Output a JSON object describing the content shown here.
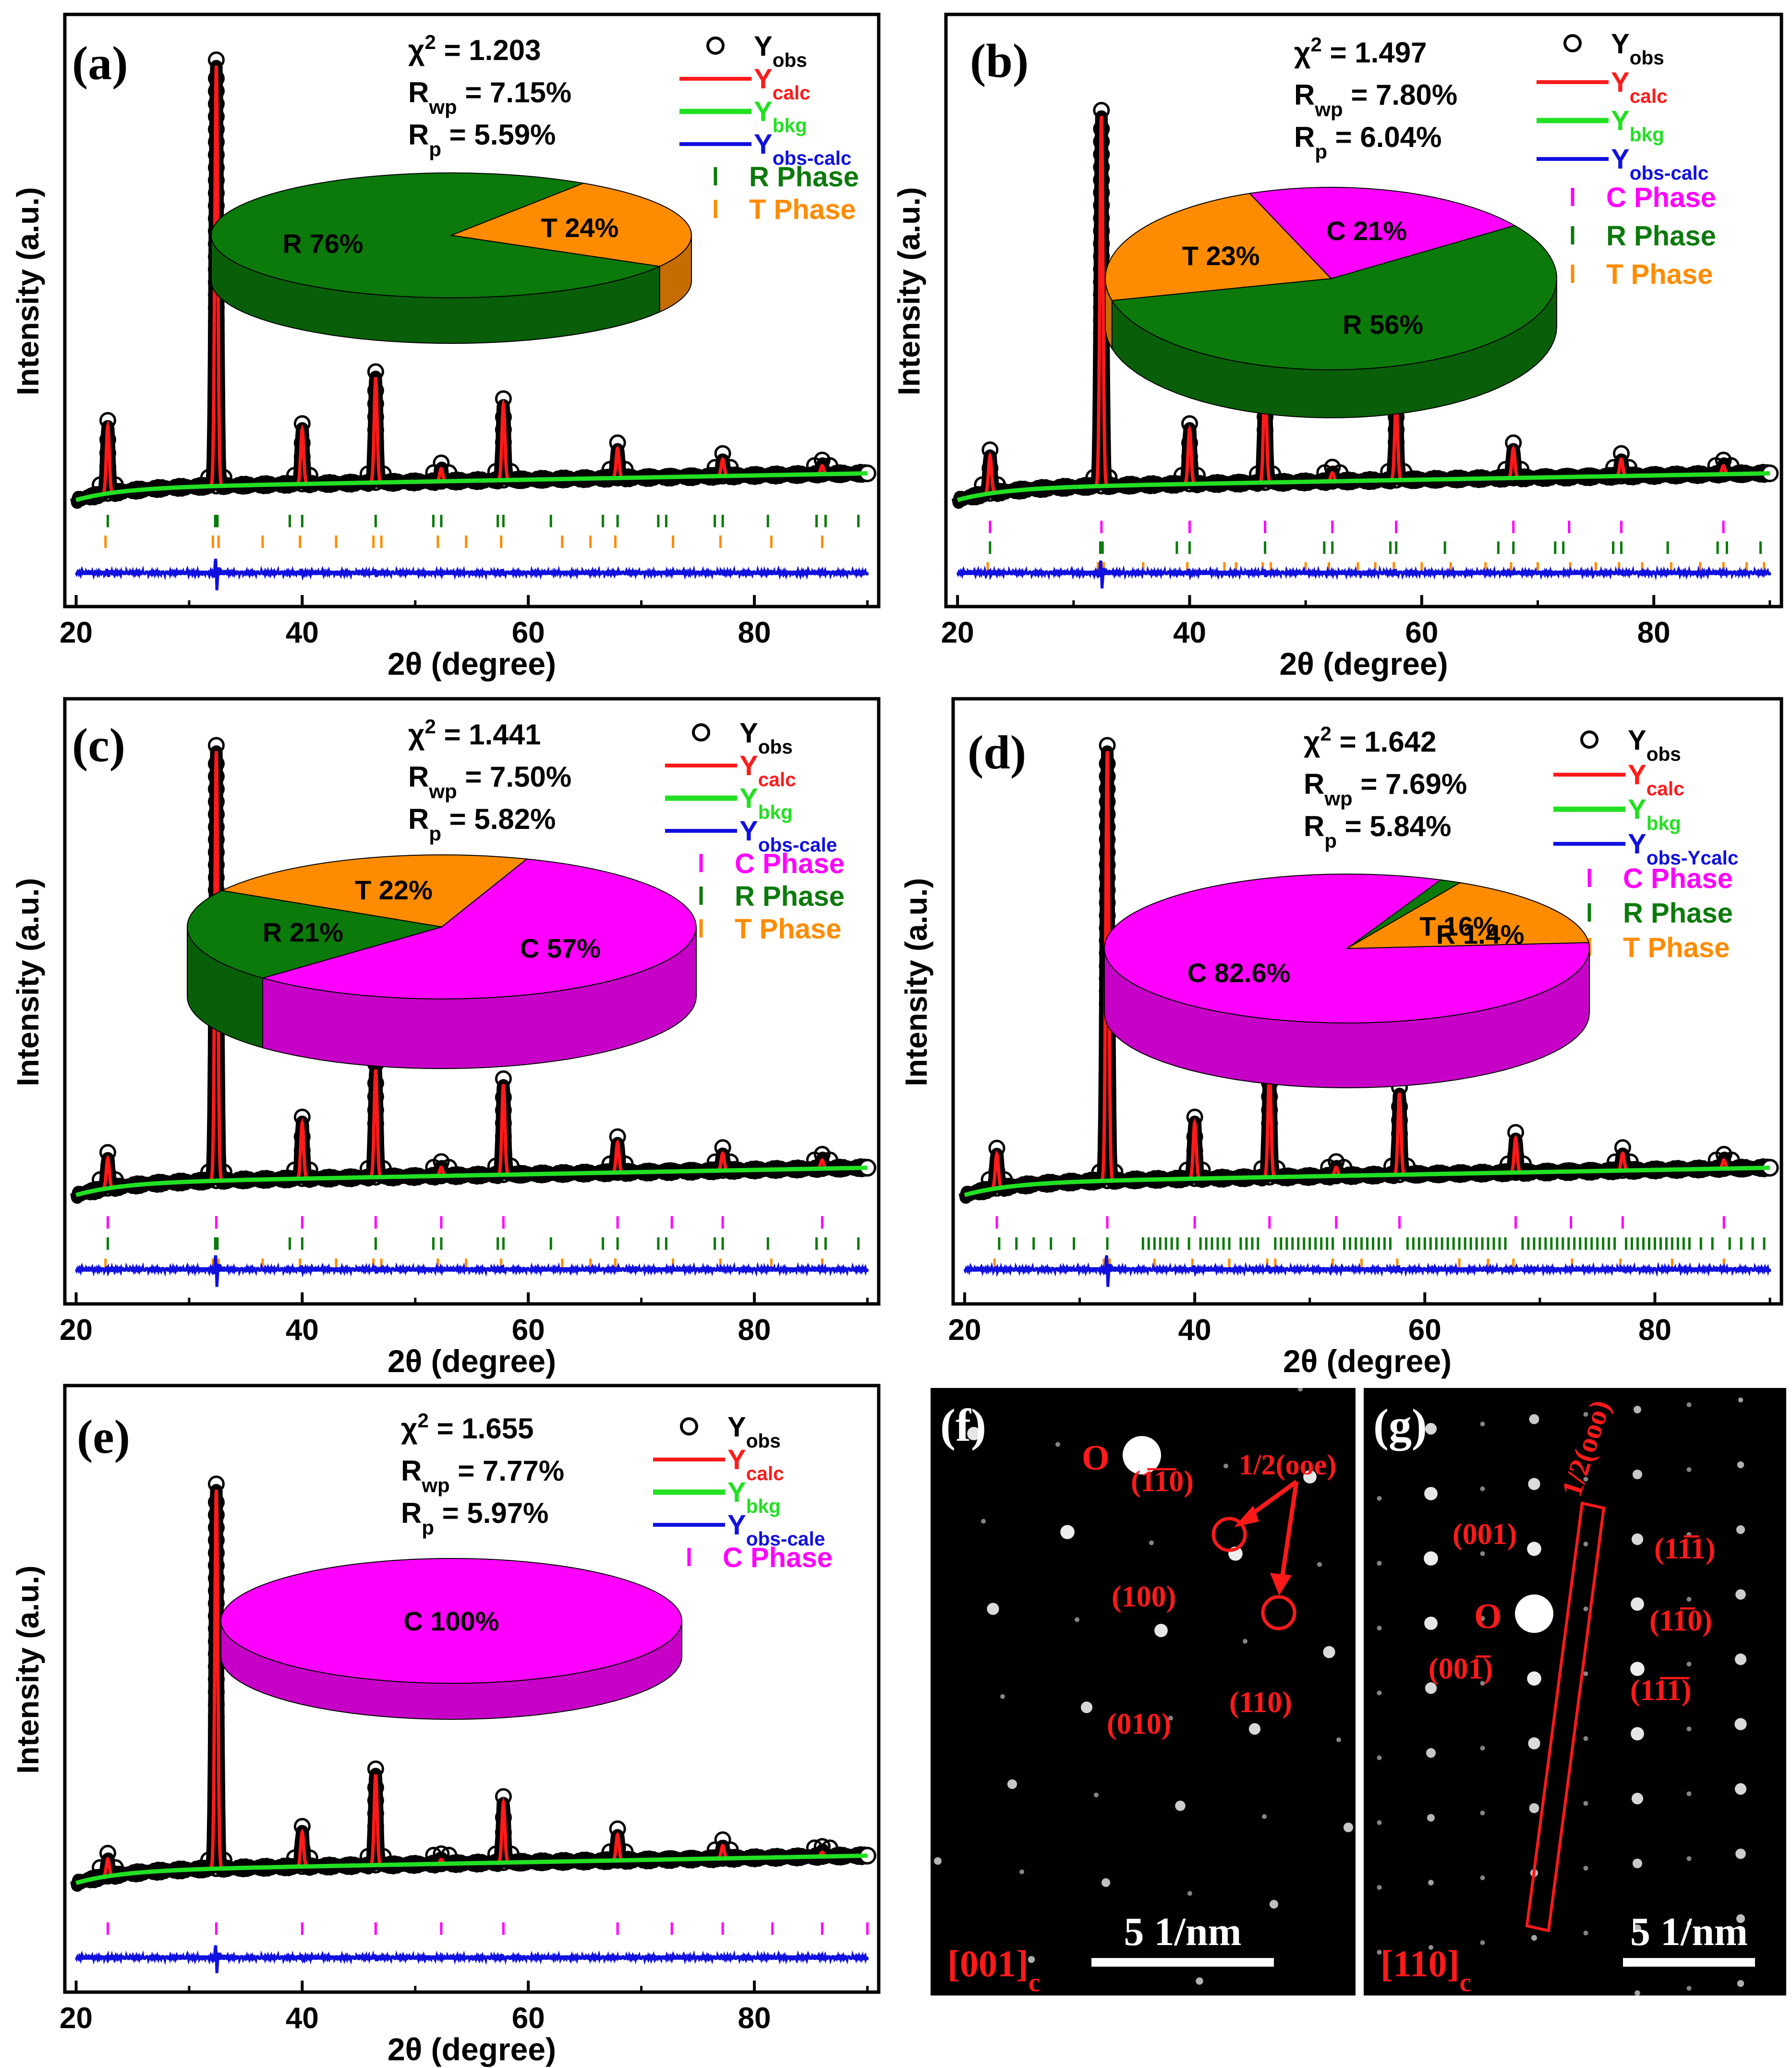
{
  "chart_data": [
    {
      "type": "line",
      "panel": "(a)",
      "xlabel": "2θ (degree)",
      "ylabel": "Intensity (a.u.)",
      "xlim": [
        20,
        90
      ],
      "xticks": [
        20,
        40,
        60,
        80
      ],
      "stats": {
        "chi2": "χ² = 1.203",
        "rwp": "Rwp = 7.15%",
        "rp": "Rp = 5.59%"
      },
      "legend": [
        {
          "label": "Y",
          "sub": "obs",
          "kind": "circle",
          "color": "#000000"
        },
        {
          "label": "Y",
          "sub": "calc",
          "kind": "line",
          "color": "#ff1a1a"
        },
        {
          "label": "Y",
          "sub": "bkg",
          "kind": "line",
          "color": "#22e022"
        },
        {
          "label": "Y",
          "sub": "obs-calc",
          "kind": "line",
          "color": "#1010e0"
        },
        {
          "label": "R Phase",
          "sub": "",
          "kind": "tick",
          "color": "#0b7a0b"
        },
        {
          "label": "T Phase",
          "sub": "",
          "kind": "tick",
          "color": "#ff8c00"
        }
      ],
      "peaks": [
        [
          22.8,
          0.16
        ],
        [
          32.4,
          1.0
        ],
        [
          40.0,
          0.13
        ],
        [
          46.5,
          0.25
        ],
        [
          52.3,
          0.03
        ],
        [
          57.8,
          0.18
        ],
        [
          67.9,
          0.07
        ],
        [
          77.2,
          0.04
        ],
        [
          86.0,
          0.02
        ]
      ],
      "phase_ticks": [
        {
          "phase": "R",
          "color": "#0b7a0b",
          "positions": [
            22.8,
            32.3,
            32.5,
            38.9,
            40.0,
            46.5,
            51.6,
            52.3,
            57.3,
            57.8,
            62.0,
            66.6,
            67.9,
            71.5,
            72.2,
            76.5,
            77.2,
            81.2,
            85.5,
            86.3,
            89.2
          ]
        },
        {
          "phase": "T",
          "color": "#ff8c00",
          "positions": [
            22.6,
            32.1,
            32.6,
            36.5,
            39.8,
            43.0,
            46.3,
            47.0,
            52.0,
            54.5,
            57.6,
            63.0,
            65.5,
            67.7,
            72.8,
            77.0,
            81.5,
            86.0
          ]
        }
      ],
      "pie": [
        {
          "label": "R 76%",
          "phase": "R",
          "value": 76,
          "color": "#0b7a0b"
        },
        {
          "label": "T 24%",
          "phase": "T",
          "value": 24,
          "color": "#ff8c00"
        }
      ]
    },
    {
      "type": "line",
      "panel": "(b)",
      "xlabel": "2θ (degree)",
      "ylabel": "Intensity (a.u.)",
      "xlim": [
        20,
        90
      ],
      "xticks": [
        20,
        40,
        60,
        80
      ],
      "stats": {
        "chi2": "χ² = 1.497",
        "rwp": "Rwp = 7.80%",
        "rp": "Rp = 6.04%"
      },
      "legend": [
        {
          "label": "Y",
          "sub": "obs",
          "kind": "circle",
          "color": "#000000"
        },
        {
          "label": "Y",
          "sub": "calc",
          "kind": "line",
          "color": "#ff1a1a"
        },
        {
          "label": "Y",
          "sub": "bkg",
          "kind": "line",
          "color": "#22e022"
        },
        {
          "label": "Y",
          "sub": "obs-calc",
          "kind": "line",
          "color": "#1010e0"
        },
        {
          "label": "C Phase",
          "sub": "",
          "kind": "tick",
          "color": "#ff00ff"
        },
        {
          "label": "R Phase",
          "sub": "",
          "kind": "tick",
          "color": "#0b7a0b"
        },
        {
          "label": "T Phase",
          "sub": "",
          "kind": "tick",
          "color": "#ff8c00"
        }
      ],
      "peaks": [
        [
          22.8,
          0.09
        ],
        [
          32.4,
          0.88
        ],
        [
          40.0,
          0.13
        ],
        [
          46.5,
          0.25
        ],
        [
          52.3,
          0.02
        ],
        [
          57.8,
          0.18
        ],
        [
          67.9,
          0.07
        ],
        [
          77.2,
          0.04
        ],
        [
          86.0,
          0.02
        ]
      ],
      "phase_ticks": [
        {
          "phase": "C",
          "color": "#ff00ff",
          "positions": [
            22.8,
            32.4,
            40.0,
            46.5,
            52.3,
            57.8,
            67.9,
            72.7,
            77.2,
            86.0
          ]
        },
        {
          "phase": "R",
          "color": "#0b7a0b",
          "positions": [
            22.8,
            32.3,
            32.5,
            38.9,
            40.0,
            46.5,
            51.6,
            52.3,
            57.3,
            57.8,
            62.0,
            66.6,
            67.9,
            71.5,
            72.2,
            76.5,
            77.2,
            81.2,
            85.5,
            86.3,
            89.2
          ]
        },
        {
          "phase": "T",
          "color": "#ff8c00",
          "positions": [
            22.6,
            32.1,
            32.6,
            36.0,
            39.8,
            43.0,
            44.0,
            46.3,
            47.0,
            50.0,
            52.0,
            54.5,
            56.0,
            57.6,
            60.0,
            62.5,
            65.5,
            67.7,
            70.0,
            72.8,
            75.0,
            77.0,
            79.0,
            81.5,
            84.0,
            86.0,
            88.0,
            89.5
          ]
        }
      ],
      "pie": [
        {
          "label": "R 56%",
          "phase": "R",
          "value": 56,
          "color": "#0b7a0b"
        },
        {
          "label": "T 23%",
          "phase": "T",
          "value": 23,
          "color": "#ff8c00"
        },
        {
          "label": "C 21%",
          "phase": "C",
          "value": 21,
          "color": "#ff00ff"
        }
      ]
    },
    {
      "type": "line",
      "panel": "(c)",
      "xlabel": "2θ (degree)",
      "ylabel": "Intensity (a.u.)",
      "xlim": [
        20,
        90
      ],
      "xticks": [
        20,
        40,
        60,
        80
      ],
      "stats": {
        "chi2": "χ² = 1.441",
        "rwp": "Rwp = 7.50%",
        "rp": "Rp = 5.82%"
      },
      "legend": [
        {
          "label": "Y",
          "sub": "obs",
          "kind": "circle",
          "color": "#000000"
        },
        {
          "label": "Y",
          "sub": "calc",
          "kind": "line",
          "color": "#ff1a1a"
        },
        {
          "label": "Y",
          "sub": "bkg",
          "kind": "line",
          "color": "#22e022"
        },
        {
          "label": "Y",
          "sub": "obs-cale",
          "kind": "line",
          "color": "#1010e0"
        },
        {
          "label": "C Phase",
          "sub": "",
          "kind": "tick",
          "color": "#ff00ff"
        },
        {
          "label": "R Phase",
          "sub": "",
          "kind": "tick",
          "color": "#0b7a0b"
        },
        {
          "label": "T Phase",
          "sub": "",
          "kind": "tick",
          "color": "#ff8c00"
        }
      ],
      "peaks": [
        [
          22.8,
          0.07
        ],
        [
          32.4,
          1.0
        ],
        [
          40.0,
          0.13
        ],
        [
          46.5,
          0.25
        ],
        [
          52.3,
          0.02
        ],
        [
          57.8,
          0.21
        ],
        [
          67.9,
          0.07
        ],
        [
          77.2,
          0.04
        ],
        [
          86.0,
          0.02
        ]
      ],
      "phase_ticks": [
        {
          "phase": "C",
          "color": "#ff00ff",
          "positions": [
            22.8,
            32.4,
            40.0,
            46.5,
            52.3,
            57.8,
            67.9,
            72.7,
            77.2,
            86.0
          ]
        },
        {
          "phase": "R",
          "color": "#0b7a0b",
          "positions": [
            22.8,
            32.3,
            32.5,
            38.9,
            40.0,
            46.5,
            51.6,
            52.3,
            57.3,
            57.8,
            62.0,
            66.6,
            67.9,
            71.5,
            72.2,
            76.5,
            77.2,
            81.2,
            85.5,
            86.3,
            89.2
          ]
        },
        {
          "phase": "T",
          "color": "#ff8c00",
          "positions": [
            22.6,
            32.1,
            32.6,
            36.5,
            39.8,
            43.0,
            46.3,
            47.0,
            52.0,
            54.5,
            57.6,
            63.0,
            65.5,
            67.7,
            72.8,
            77.0,
            81.5,
            86.0
          ]
        }
      ],
      "pie": [
        {
          "label": "C 57%",
          "phase": "C",
          "value": 57,
          "color": "#ff00ff"
        },
        {
          "label": "R 21%",
          "phase": "R",
          "value": 21,
          "color": "#0b7a0b"
        },
        {
          "label": "T 22%",
          "phase": "T",
          "value": 22,
          "color": "#ff8c00"
        }
      ]
    },
    {
      "type": "line",
      "panel": "(d)",
      "xlabel": "2θ (degree)",
      "ylabel": "Intensity (a.u.)",
      "xlim": [
        20,
        90
      ],
      "xticks": [
        20,
        40,
        60,
        80
      ],
      "stats": {
        "chi2": "χ² = 1.642",
        "rwp": "Rwp = 7.69%",
        "rp": "Rp = 5.84%"
      },
      "legend": [
        {
          "label": "Y",
          "sub": "obs",
          "kind": "circle",
          "color": "#000000"
        },
        {
          "label": "Y",
          "sub": "calc",
          "kind": "line",
          "color": "#ff1a1a"
        },
        {
          "label": "Y",
          "sub": "bkg",
          "kind": "line",
          "color": "#22e022"
        },
        {
          "label": "Y",
          "sub": "obs-Ycalc",
          "kind": "line",
          "color": "#1010e0"
        },
        {
          "label": "C Phase",
          "sub": "",
          "kind": "tick",
          "color": "#ff00ff"
        },
        {
          "label": "R Phase",
          "sub": "",
          "kind": "tick",
          "color": "#0b7a0b"
        },
        {
          "label": "T Phase",
          "sub": "",
          "kind": "tick",
          "color": "#ff8c00"
        }
      ],
      "peaks": [
        [
          22.8,
          0.08
        ],
        [
          32.4,
          1.0
        ],
        [
          40.0,
          0.13
        ],
        [
          46.5,
          0.25
        ],
        [
          52.3,
          0.02
        ],
        [
          57.8,
          0.19
        ],
        [
          67.9,
          0.08
        ],
        [
          77.2,
          0.04
        ],
        [
          86.0,
          0.02
        ]
      ],
      "phase_ticks": [
        {
          "phase": "C",
          "color": "#ff00ff",
          "positions": [
            22.8,
            32.4,
            40.0,
            46.5,
            52.3,
            57.8,
            67.9,
            72.7,
            77.2,
            86.0
          ]
        },
        {
          "phase": "R",
          "color": "#0b7a0b",
          "positions": [
            23.0,
            24.5,
            26.0,
            27.5,
            29.5,
            32.4,
            35.5,
            36.0,
            36.5,
            37.0,
            37.5,
            38.0,
            38.5,
            39.5,
            40.5,
            41.0,
            41.5,
            42.0,
            42.5,
            43.0,
            44.0,
            44.5,
            45.0,
            45.5,
            47.0,
            47.5,
            48.0,
            48.5,
            49.0,
            49.5,
            50.0,
            50.5,
            51.0,
            51.5,
            52.0,
            53.0,
            53.5,
            54.0,
            54.5,
            55.0,
            55.5,
            56.0,
            56.5,
            57.0,
            58.5,
            59.0,
            59.5,
            60.0,
            60.5,
            61.0,
            61.5,
            62.0,
            62.5,
            63.0,
            63.5,
            64.0,
            64.5,
            65.0,
            65.5,
            66.0,
            66.5,
            67.0,
            68.5,
            69.0,
            69.5,
            70.0,
            70.5,
            71.0,
            71.5,
            72.0,
            72.5,
            73.0,
            73.5,
            74.0,
            74.5,
            75.0,
            75.5,
            76.0,
            76.5,
            77.5,
            78.0,
            78.5,
            79.0,
            79.5,
            80.0,
            80.5,
            81.0,
            81.5,
            82.0,
            82.5,
            83.0,
            84.0,
            85.0,
            86.5,
            87.5,
            88.5,
            89.5
          ]
        },
        {
          "phase": "T",
          "color": "#ff8c00",
          "positions": [
            22.6,
            32.1,
            32.6,
            36.5,
            39.8,
            43.0,
            46.3,
            47.0,
            52.0,
            54.5,
            57.6,
            63.0,
            65.5,
            67.7,
            72.8,
            77.0,
            81.5,
            86.0
          ]
        }
      ],
      "pie": [
        {
          "label": "C 82.6%",
          "phase": "C",
          "value": 82.6,
          "color": "#ff00ff"
        },
        {
          "label": "R 1.4%",
          "phase": "R",
          "value": 1.4,
          "color": "#0b7a0b"
        },
        {
          "label": "T 16%",
          "phase": "T",
          "value": 16,
          "color": "#ff8c00"
        }
      ]
    },
    {
      "type": "line",
      "panel": "(e)",
      "xlabel": "2θ (degree)",
      "ylabel": "Intensity (a.u.)",
      "xlim": [
        20,
        90
      ],
      "xticks": [
        20,
        40,
        60,
        80
      ],
      "stats": {
        "chi2": "χ² = 1.655",
        "rwp": "Rwp = 7.77%",
        "rp": "Rp = 5.97%"
      },
      "legend": [
        {
          "label": "Y",
          "sub": "obs",
          "kind": "circle",
          "color": "#000000"
        },
        {
          "label": "Y",
          "sub": "calc",
          "kind": "line",
          "color": "#ff1a1a"
        },
        {
          "label": "Y",
          "sub": "bkg",
          "kind": "line",
          "color": "#22e022"
        },
        {
          "label": "Y",
          "sub": "obs-cale",
          "kind": "line",
          "color": "#1010e0"
        },
        {
          "label": "C Phase",
          "sub": "",
          "kind": "tick",
          "color": "#ff00ff"
        }
      ],
      "peaks": [
        [
          22.8,
          0.04
        ],
        [
          32.4,
          0.88
        ],
        [
          40.0,
          0.08
        ],
        [
          46.5,
          0.21
        ],
        [
          52.3,
          0.01
        ],
        [
          57.8,
          0.14
        ],
        [
          67.9,
          0.06
        ],
        [
          77.2,
          0.03
        ],
        [
          86.0,
          0.01
        ]
      ],
      "phase_ticks": [
        {
          "phase": "C",
          "color": "#ff00ff",
          "positions": [
            22.8,
            32.4,
            40.0,
            46.5,
            52.3,
            57.8,
            67.9,
            72.7,
            77.2,
            81.6,
            86.0,
            90.0
          ]
        }
      ],
      "pie": [
        {
          "label": "C 100%",
          "phase": "C",
          "value": 100,
          "color": "#ff00ff"
        }
      ]
    }
  ],
  "saed": [
    {
      "panel": "(f)",
      "zone": "[001]",
      "zone_sub": "c",
      "scale_bar": "5 1/nm",
      "origin": "O",
      "superlattice": "1/2(ooe)",
      "labels": [
        "(1̅1̅0)",
        "(100)",
        "(010)",
        "(110)"
      ]
    },
    {
      "panel": "(g)",
      "zone": "[110]",
      "zone_sub": "c",
      "scale_bar": "5 1/nm",
      "origin": "O",
      "superlattice": "1/2(ooo)",
      "labels": [
        "(001)",
        "(001̅)",
        "(11̅1)",
        "(11̅0)",
        "(11̅1̅)"
      ]
    }
  ]
}
